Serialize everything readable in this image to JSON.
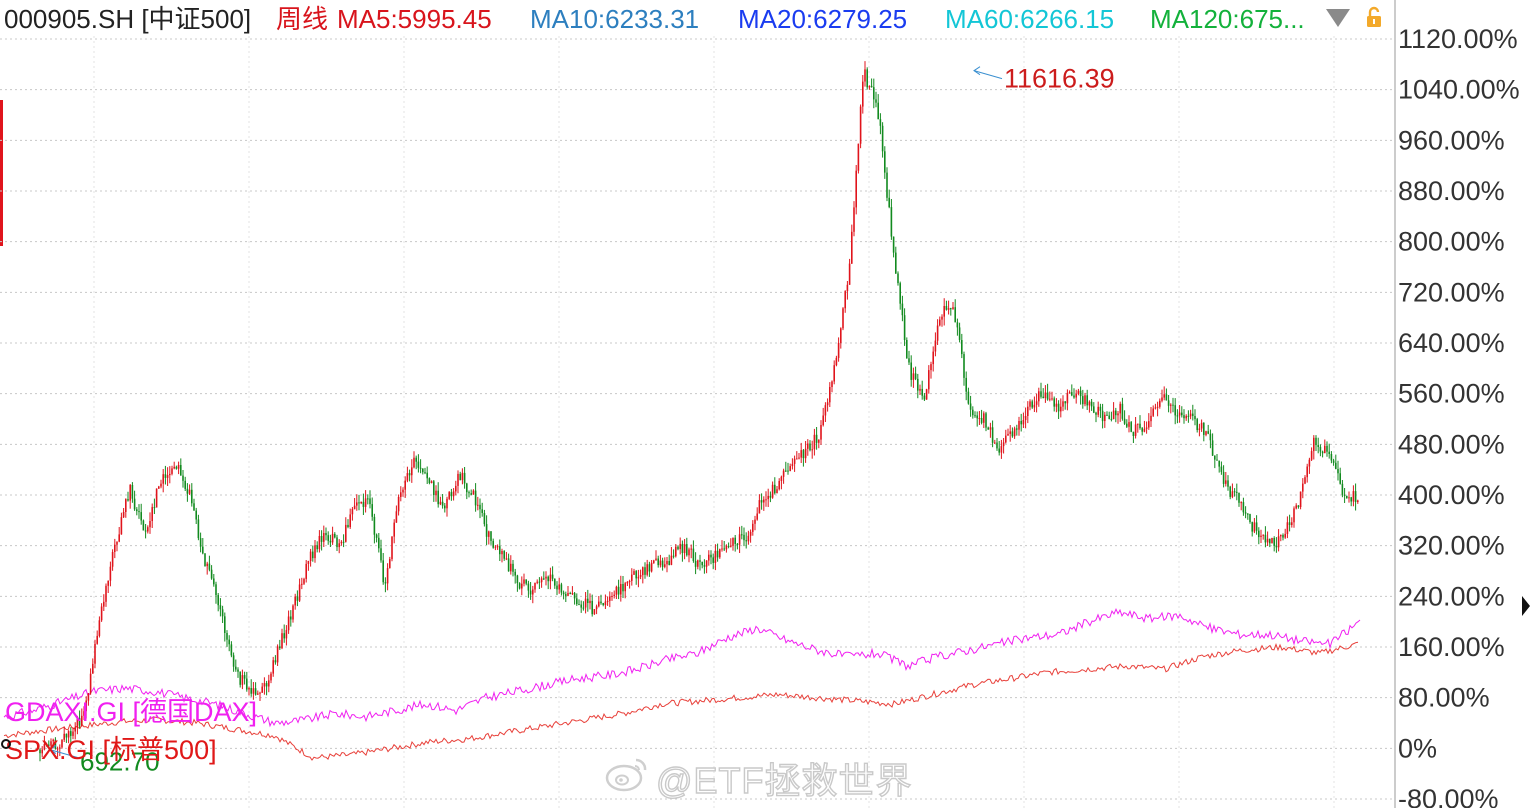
{
  "header": {
    "symbol": "000905.SH [中证500]",
    "period": "周线",
    "indicators": [
      {
        "label": "MA5:5995.45",
        "color": "#d8141c"
      },
      {
        "label": "MA10:6233.31",
        "color": "#2d7fbf"
      },
      {
        "label": "MA20:6279.25",
        "color": "#1a3cf0"
      },
      {
        "label": "MA60:6266.15",
        "color": "#13c6d6"
      },
      {
        "label": "MA120:675...",
        "color": "#13b13b"
      }
    ],
    "icons": [
      "dropdown-triangle-icon",
      "lock-icon"
    ]
  },
  "overlays": {
    "dax_label": "GDAXI.GI [德国DAX]",
    "spx_label": "SPX.GI [标普500]"
  },
  "annotations": {
    "high": "11616.39",
    "low": "692.70"
  },
  "watermark": {
    "text": "@ETF拯救世界",
    "icon": "weibo-icon"
  },
  "colors": {
    "up": "#e0141c",
    "down": "#128a1f",
    "dax": "#f020f0",
    "spx": "#e8403a",
    "axis_text": "#333333",
    "grid": "#c8c8c8"
  },
  "chart_data": {
    "type": "line",
    "title": "000905.SH [中证500] 周线",
    "y_unit": "% change",
    "y_ticks": [
      "1120.00%",
      "1040.00%",
      "960.00%",
      "880.00%",
      "800.00%",
      "720.00%",
      "640.00%",
      "560.00%",
      "480.00%",
      "400.00%",
      "320.00%",
      "240.00%",
      "160.00%",
      "80.00%",
      "0%",
      "-80.00%"
    ],
    "ylim": [
      -80,
      1120
    ],
    "grid": true,
    "series": [
      {
        "name": "000905.SH [中证500]",
        "style": "candlestick",
        "values": [
          -2,
          5,
          20,
          60,
          200,
          320,
          410,
          340,
          420,
          450,
          400,
          300,
          220,
          120,
          90,
          100,
          160,
          230,
          300,
          340,
          320,
          380,
          390,
          260,
          400,
          460,
          420,
          380,
          430,
          400,
          330,
          300,
          260,
          250,
          270,
          240,
          230,
          220,
          230,
          260,
          280,
          290,
          300,
          320,
          290,
          300,
          320,
          330,
          380,
          410,
          440,
          470,
          490,
          600,
          750,
          1070,
          1000,
          780,
          600,
          550,
          680,
          700,
          540,
          520,
          470,
          500,
          540,
          560,
          540,
          560,
          550,
          520,
          540,
          500,
          510,
          560,
          530,
          520,
          490,
          420,
          390,
          350,
          320,
          330,
          390,
          480,
          470,
          400,
          395
        ]
      },
      {
        "name": "GDAXI.GI [德国DAX]",
        "values": [
          50,
          60,
          75,
          90,
          95,
          90,
          80,
          70,
          55,
          40,
          45,
          55,
          50,
          60,
          70,
          60,
          80,
          90,
          100,
          110,
          115,
          125,
          140,
          150,
          175,
          190,
          170,
          155,
          145,
          150,
          130,
          145,
          155,
          165,
          175,
          180,
          200,
          215,
          205,
          210,
          190,
          180,
          180,
          170,
          165,
          200
        ]
      },
      {
        "name": "SPX.GI [标普500]",
        "values": [
          20,
          28,
          35,
          42,
          45,
          40,
          30,
          20,
          -15,
          -10,
          0,
          10,
          15,
          25,
          35,
          45,
          55,
          70,
          75,
          80,
          85,
          80,
          75,
          70,
          85,
          100,
          110,
          120,
          125,
          130,
          125,
          145,
          155,
          160,
          150,
          165
        ]
      }
    ],
    "annotations": [
      {
        "label": "11616.39",
        "value": 1070
      },
      {
        "label": "692.70",
        "value": -2
      }
    ]
  }
}
